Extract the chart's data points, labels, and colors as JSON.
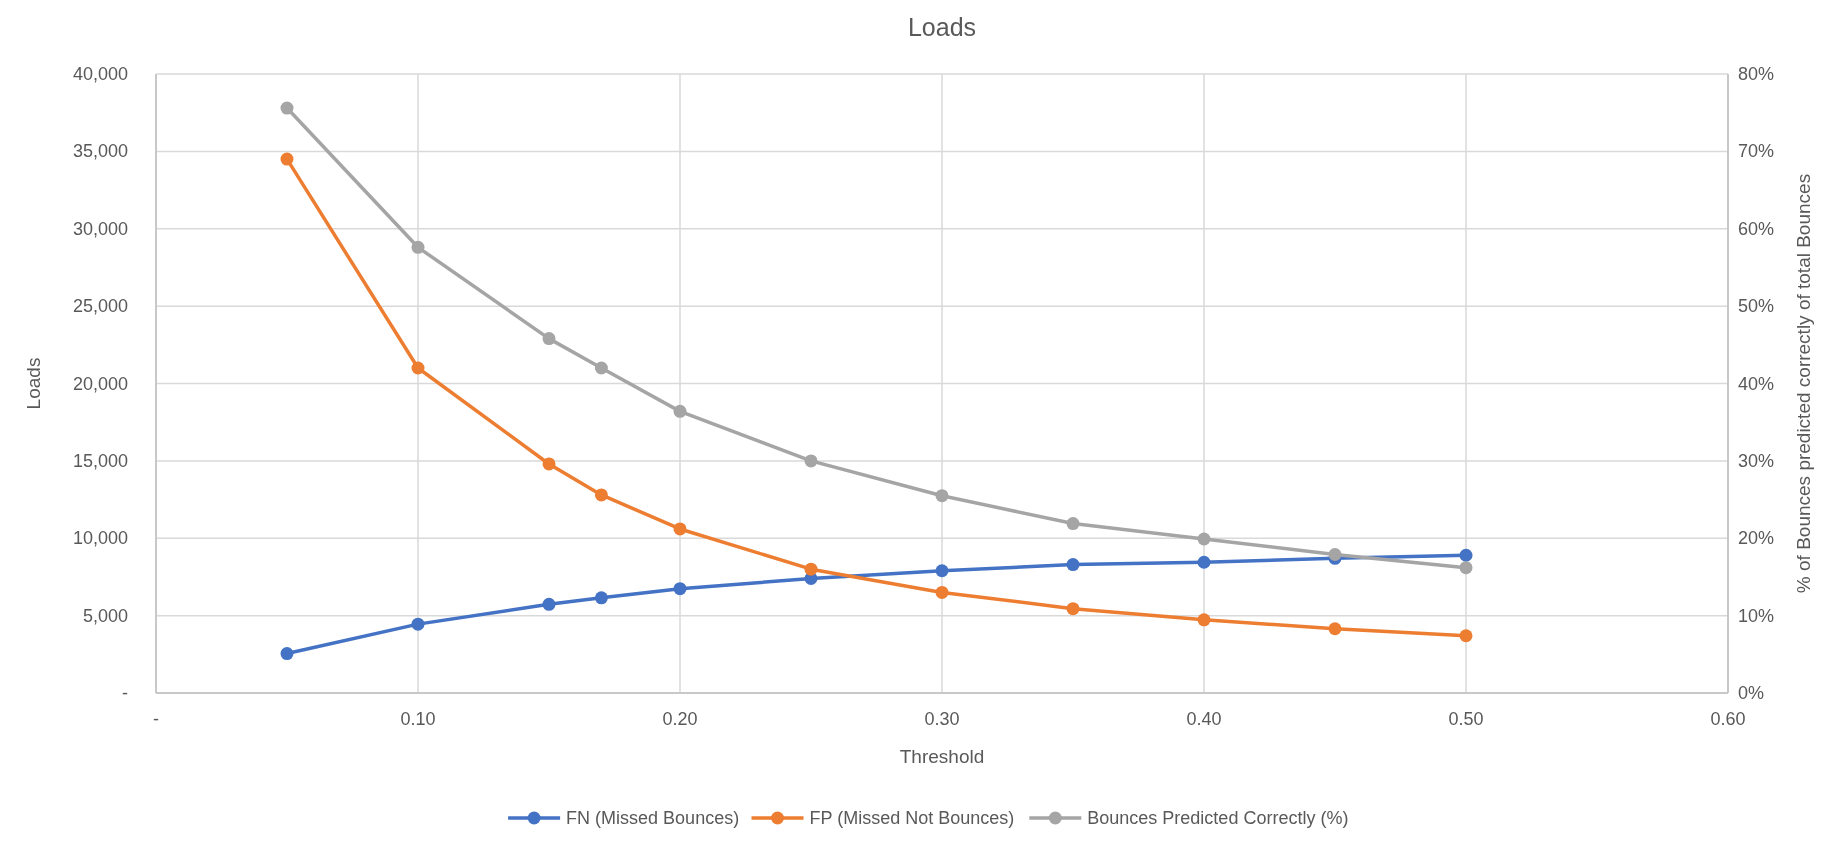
{
  "chart_data": {
    "type": "line",
    "title": "Loads",
    "xlabel": "Threshold",
    "ylabel": "Loads",
    "y2label": "% of Bounces predicted correctly of total Bounces",
    "x": [
      0.05,
      0.1,
      0.15,
      0.17,
      0.2,
      0.25,
      0.3,
      0.35,
      0.4,
      0.45,
      0.5
    ],
    "series": [
      {
        "name": "FN (Missed Bounces)",
        "color": "#4472c4",
        "values": [
          2550,
          4450,
          5730,
          6150,
          6740,
          7400,
          7900,
          8300,
          8450,
          8700,
          8900
        ]
      },
      {
        "name": "FP (Missed Not Bounces)",
        "color": "#ed7d31",
        "values": [
          34500,
          21000,
          14800,
          12800,
          10600,
          8000,
          6500,
          5450,
          4730,
          4150,
          3700
        ]
      },
      {
        "name": "Bounces Predicted Correctly (%)",
        "color": "#a5a5a5",
        "axis": "y2",
        "values": [
          75.6,
          57.6,
          45.8,
          42.0,
          36.4,
          30.0,
          25.5,
          21.9,
          19.9,
          17.9,
          16.2
        ]
      }
    ],
    "xlim": [
      0,
      0.6
    ],
    "xticks": [
      {
        "value": 0,
        "label": "-"
      },
      {
        "value": 0.1,
        "label": "0.10"
      },
      {
        "value": 0.2,
        "label": "0.20"
      },
      {
        "value": 0.3,
        "label": "0.30"
      },
      {
        "value": 0.4,
        "label": "0.40"
      },
      {
        "value": 0.5,
        "label": "0.50"
      },
      {
        "value": 0.6,
        "label": "0.60"
      }
    ],
    "ylim": [
      0,
      40000
    ],
    "yticks": [
      {
        "value": 0,
        "label": "-"
      },
      {
        "value": 5000,
        "label": "5,000"
      },
      {
        "value": 10000,
        "label": "10,000"
      },
      {
        "value": 15000,
        "label": "15,000"
      },
      {
        "value": 20000,
        "label": "20,000"
      },
      {
        "value": 25000,
        "label": "25,000"
      },
      {
        "value": 30000,
        "label": "30,000"
      },
      {
        "value": 35000,
        "label": "35,000"
      },
      {
        "value": 40000,
        "label": "40,000"
      }
    ],
    "y2lim": [
      0,
      80
    ],
    "y2ticks": [
      {
        "value": 0,
        "label": "0%"
      },
      {
        "value": 10,
        "label": "10%"
      },
      {
        "value": 20,
        "label": "20%"
      },
      {
        "value": 30,
        "label": "30%"
      },
      {
        "value": 40,
        "label": "40%"
      },
      {
        "value": 50,
        "label": "50%"
      },
      {
        "value": 60,
        "label": "60%"
      },
      {
        "value": 70,
        "label": "70%"
      },
      {
        "value": 80,
        "label": "80%"
      }
    ],
    "grid": true,
    "legend": "bottom",
    "marker": "circle",
    "line_style": "solid"
  }
}
